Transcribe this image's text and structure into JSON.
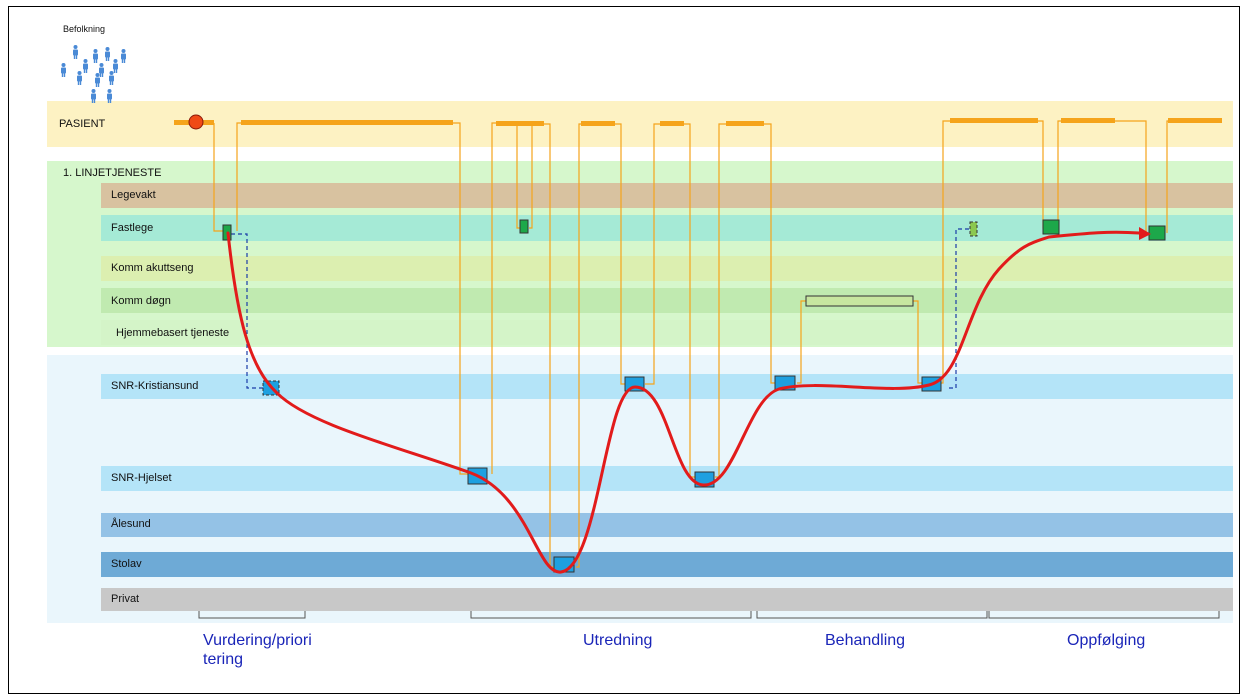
{
  "population_label": "Befolkning",
  "lanes": {
    "pasient": "PASIENT",
    "linje": "1. LINJETJENESTE",
    "legevakt": "Legevakt",
    "fastlege": "Fastlege",
    "komm_akutt": "Komm akuttseng",
    "komm_dogn": "Komm døgn",
    "hjemmebasert": "Hjemmebasert tjeneste",
    "snr_kristiansund": "SNR-Kristiansund",
    "snr_hjelset": "SNR-Hjelset",
    "alesund": "Ålesund",
    "stolav": "Stolav",
    "privat": "Privat"
  },
  "phases": {
    "vurdering_line1": "Vurdering/priori",
    "vurdering_line2": "tering",
    "utredning": "Utredning",
    "behandling": "Behandling",
    "oppfolging": "Oppfølging"
  },
  "colors": {
    "pasient_band": "#fdf2c3",
    "linje_band": "#d6f7cc",
    "legevakt": "#d8c2a0",
    "fastlege": "#a5ead6",
    "komm_akutt": "#dcefb0",
    "komm_dogn": "#c0eab0",
    "hjemmebasert": "#d4f4c8",
    "hospital_band": "#eaf6fc",
    "snr": "#b4e4f8",
    "alesund": "#94c2e6",
    "stolav": "#6eaad6",
    "privat": "#c8c8c8",
    "orange": "#f5a41b",
    "red_path": "#e21b1b",
    "blue_box": "#1ea0e0",
    "green_box": "#1da84a",
    "phase_text": "#1a25b8"
  },
  "icons": {
    "person": "person-icon",
    "patient_marker": "circle-marker-icon"
  }
}
